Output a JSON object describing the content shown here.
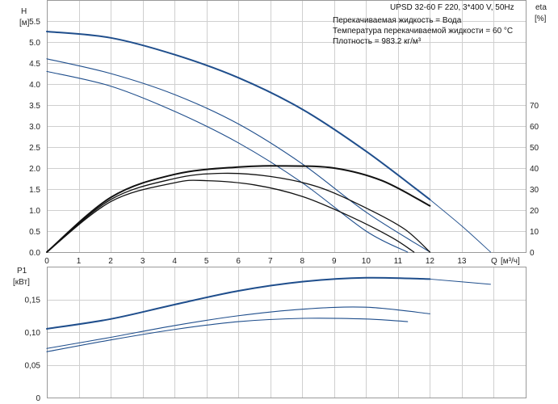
{
  "chart_data": [
    {
      "type": "line",
      "title": "UPSD 32-60 F 220, 3*400 V, 50Hz",
      "ylabel": "H",
      "ylabel_unit": "[м]",
      "xlabel": "Q",
      "xlabel_unit": "[м³/ч]",
      "y2label": "eta",
      "y2label_unit": "[%]",
      "info_lines": [
        "Перекачиваемая жидкость = Вода",
        "Температура перекачиваемой жидкости = 60 °C",
        "Плотность = 983.2 кг/м³"
      ],
      "xlim": [
        0,
        15
      ],
      "ylim": [
        0,
        6.0
      ],
      "y2lim": [
        0,
        120
      ],
      "x_ticks": [
        "0",
        "1",
        "2",
        "3",
        "4",
        "5",
        "6",
        "7",
        "8",
        "9",
        "10",
        "11",
        "12",
        "13"
      ],
      "y_ticks": [
        "0.0",
        "0.5",
        "1.0",
        "1.5",
        "2.0",
        "2.5",
        "3.0",
        "3.5",
        "4.0",
        "4.5",
        "5.0",
        "5.5"
      ],
      "y2_ticks": [
        "0",
        "10",
        "20",
        "30",
        "40",
        "50",
        "60",
        "70"
      ],
      "grid": true,
      "series": [
        {
          "role": "head-speed-3",
          "color": "#1f4e8c",
          "x": [
            0,
            2,
            4,
            6,
            8,
            10,
            12
          ],
          "y": [
            5.25,
            5.1,
            4.7,
            4.15,
            3.4,
            2.4,
            1.25
          ]
        },
        {
          "role": "head-speed-3-extension",
          "color": "#1f4e8c",
          "x": [
            12,
            13,
            13.9
          ],
          "y": [
            1.25,
            0.62,
            0
          ]
        },
        {
          "role": "head-speed-2",
          "color": "#1f4e8c",
          "x": [
            0,
            2,
            4,
            6,
            8,
            10,
            12
          ],
          "y": [
            4.6,
            4.25,
            3.75,
            3.05,
            2.1,
            0.95,
            0
          ]
        },
        {
          "role": "head-speed-1",
          "color": "#1f4e8c",
          "x": [
            0,
            2,
            4,
            6,
            8,
            10,
            11.3
          ],
          "y": [
            4.3,
            3.95,
            3.35,
            2.6,
            1.65,
            0.5,
            0
          ]
        },
        {
          "role": "eta-speed-3",
          "axis": "y2",
          "color": "#111111",
          "x": [
            0,
            2,
            4,
            6,
            7.5,
            9,
            10.5,
            12
          ],
          "y": [
            0,
            26,
            37,
            40.5,
            41,
            40,
            34,
            22
          ]
        },
        {
          "role": "eta-speed-2",
          "axis": "y2",
          "color": "#111111",
          "x": [
            0,
            2,
            4,
            5.5,
            7,
            8.5,
            10,
            11.2,
            12
          ],
          "y": [
            0,
            25,
            35,
            37.5,
            36,
            31,
            21,
            11,
            0
          ]
        },
        {
          "role": "eta-speed-1",
          "axis": "y2",
          "color": "#111111",
          "x": [
            0,
            2,
            4,
            5,
            6.5,
            8,
            9.5,
            10.8,
            11.5
          ],
          "y": [
            0,
            24,
            33,
            34,
            32,
            26.5,
            17,
            7,
            0
          ]
        }
      ]
    },
    {
      "type": "line",
      "ylabel": "P1",
      "ylabel_unit": "[кВт]",
      "xlim": [
        0,
        15
      ],
      "ylim": [
        0,
        0.2
      ],
      "y_ticks": [
        "0",
        "0,05",
        "0,10",
        "0,15"
      ],
      "y_tick_values": [
        0,
        0.05,
        0.1,
        0.15
      ],
      "grid": true,
      "series": [
        {
          "role": "power-speed-3",
          "color": "#1f4e8c",
          "x": [
            0,
            2,
            4,
            6,
            8,
            10,
            12
          ],
          "y": [
            0.105,
            0.12,
            0.142,
            0.163,
            0.177,
            0.183,
            0.181
          ]
        },
        {
          "role": "power-speed-3-extension",
          "color": "#1f4e8c",
          "x": [
            12,
            13.9
          ],
          "y": [
            0.181,
            0.173
          ]
        },
        {
          "role": "power-speed-2",
          "color": "#1f4e8c",
          "x": [
            0,
            2,
            4,
            6,
            8,
            10,
            12
          ],
          "y": [
            0.075,
            0.092,
            0.11,
            0.125,
            0.135,
            0.138,
            0.128
          ]
        },
        {
          "role": "power-speed-1",
          "color": "#1f4e8c",
          "x": [
            0,
            2,
            4,
            6,
            8,
            10,
            11.3
          ],
          "y": [
            0.07,
            0.088,
            0.104,
            0.116,
            0.121,
            0.12,
            0.116
          ]
        }
      ]
    }
  ]
}
